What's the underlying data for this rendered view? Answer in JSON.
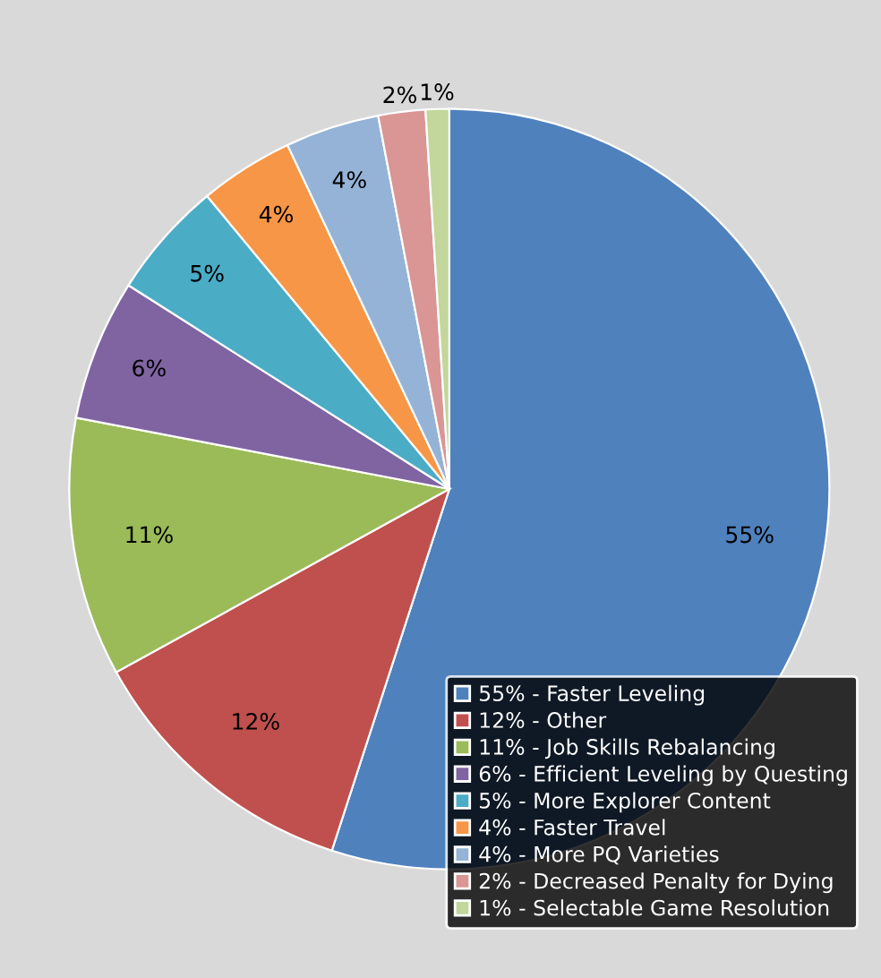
{
  "chart_data": {
    "type": "pie",
    "categories": [
      "55% - Faster Leveling",
      "12% - Other",
      "11% - Job Skills Rebalancing",
      "6% - Efficient Leveling by Questing",
      "5% - More Explorer Content",
      "4% - Faster Travel",
      "4% - More PQ Varieties",
      "2% - Decreased Penalty for Dying",
      "1% - Selectable Game Resolution"
    ],
    "values": [
      55,
      12,
      11,
      6,
      5,
      4,
      4,
      2,
      1
    ],
    "value_labels": [
      "55%",
      "12%",
      "11%",
      "6%",
      "5%",
      "4%",
      "4%",
      "2%",
      "1%"
    ],
    "colors": [
      "#4f81bd",
      "#c0504d",
      "#9bbb59",
      "#8064a2",
      "#4bacc6",
      "#f79646",
      "#95b3d7",
      "#d99694",
      "#c3d69b"
    ],
    "legend": "bottom right"
  }
}
